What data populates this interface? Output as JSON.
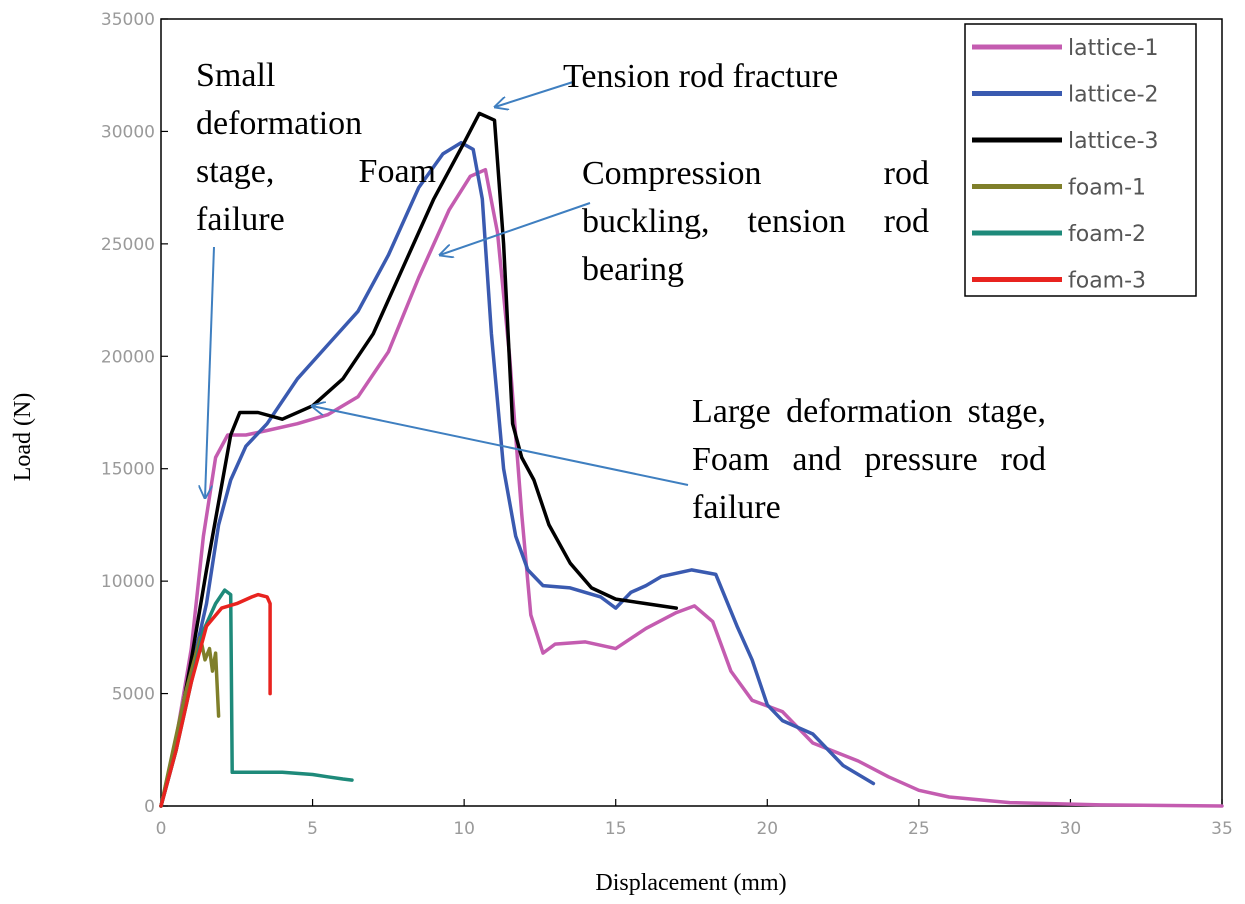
{
  "chart_data": {
    "type": "line",
    "title": "",
    "xlabel": "Displacement (mm)",
    "ylabel": "Load (N)",
    "xlim": [
      0,
      35
    ],
    "ylim": [
      0,
      35000
    ],
    "xticks": [
      0,
      5,
      10,
      15,
      20,
      25,
      30,
      35
    ],
    "yticks": [
      0,
      5000,
      10000,
      15000,
      20000,
      25000,
      30000,
      35000
    ],
    "legend_position": "top-right",
    "series": [
      {
        "name": "lattice-1",
        "color": "#c45cb0",
        "x": [
          0,
          0.5,
          1,
          1.4,
          1.8,
          2.2,
          2.8,
          3.5,
          4.5,
          5.5,
          6.5,
          7.5,
          8.5,
          9.5,
          10.2,
          10.7,
          11.1,
          11.5,
          11.9,
          12.2,
          12.6,
          13,
          14,
          15,
          16,
          17,
          17.6,
          18.2,
          18.8,
          19.5,
          20.5,
          21.5,
          23,
          24,
          25,
          26,
          28,
          31,
          35
        ],
        "y": [
          0,
          3000,
          7000,
          12000,
          15500,
          16500,
          16500,
          16700,
          17000,
          17400,
          18200,
          20200,
          23500,
          26500,
          28000,
          28300,
          25500,
          20000,
          13000,
          8500,
          6800,
          7200,
          7300,
          7000,
          7900,
          8600,
          8900,
          8200,
          6000,
          4700,
          4200,
          2800,
          2000,
          1300,
          700,
          400,
          150,
          50,
          0
        ]
      },
      {
        "name": "lattice-2",
        "color": "#3a5ab0",
        "x": [
          0,
          0.5,
          1,
          1.5,
          1.9,
          2.3,
          2.8,
          3.5,
          4.5,
          5.5,
          6.5,
          7.5,
          8.5,
          9.3,
          9.9,
          10.3,
          10.6,
          10.9,
          11.3,
          11.7,
          12.1,
          12.6,
          13.5,
          14.5,
          15,
          15.5,
          16,
          16.5,
          17.5,
          18.3,
          19,
          19.5,
          20,
          20.5,
          21.5,
          22.5,
          23.5
        ],
        "y": [
          0,
          2500,
          6000,
          9000,
          12500,
          14500,
          16000,
          17000,
          19000,
          20500,
          22000,
          24500,
          27500,
          29000,
          29500,
          29200,
          27000,
          21000,
          15000,
          12000,
          10500,
          9800,
          9700,
          9300,
          8800,
          9500,
          9800,
          10200,
          10500,
          10300,
          8000,
          6500,
          4500,
          3800,
          3200,
          1800,
          1000
        ]
      },
      {
        "name": "lattice-3",
        "color": "#000000",
        "x": [
          0,
          0.5,
          1,
          1.5,
          1.9,
          2.3,
          2.6,
          3.2,
          4,
          5,
          6,
          7,
          8,
          9,
          10,
          10.5,
          11,
          11.3,
          11.6,
          11.9,
          12.3,
          12.8,
          13.5,
          14.2,
          15,
          16,
          17
        ],
        "y": [
          0,
          2800,
          6500,
          10500,
          13500,
          16500,
          17500,
          17500,
          17200,
          17800,
          19000,
          21000,
          24000,
          27000,
          29500,
          30800,
          30500,
          25000,
          17000,
          15500,
          14500,
          12500,
          10800,
          9700,
          9200,
          9000,
          8800
        ]
      },
      {
        "name": "foam-1",
        "color": "#7f7f2a",
        "x": [
          0,
          0.4,
          0.8,
          1.1,
          1.3,
          1.45,
          1.6,
          1.7,
          1.8,
          1.9
        ],
        "y": [
          0,
          2500,
          5000,
          6500,
          7500,
          6500,
          7000,
          6000,
          6800,
          4000
        ]
      },
      {
        "name": "foam-2",
        "color": "#1e8a7a",
        "x": [
          0,
          0.5,
          1,
          1.4,
          1.8,
          2.1,
          2.3,
          2.35,
          2.4,
          3,
          4,
          5,
          5.5,
          6,
          6.3
        ],
        "y": [
          0,
          2500,
          5500,
          7800,
          9000,
          9600,
          9400,
          1500,
          1500,
          1500,
          1500,
          1400,
          1300,
          1200,
          1150
        ]
      },
      {
        "name": "foam-3",
        "color": "#e8231f",
        "x": [
          0,
          0.5,
          1,
          1.5,
          2,
          2.5,
          3,
          3.2,
          3.5,
          3.6,
          3.6
        ],
        "y": [
          0,
          2500,
          5500,
          8000,
          8800,
          9000,
          9300,
          9400,
          9300,
          9000,
          5000
        ]
      }
    ]
  },
  "annotations": [
    {
      "id": "small",
      "text": "Small deformation stage, Foam failure"
    },
    {
      "id": "tension",
      "text": "Tension rod fracture"
    },
    {
      "id": "compression",
      "text": "Compression rod buckling, tension rod bearing"
    },
    {
      "id": "large",
      "text": "Large deformation stage, Foam and pressure rod failure"
    }
  ],
  "colors": {
    "arrow": "#3f7fc0",
    "tick_text": "#9a9a9a",
    "axis": "#000000"
  }
}
